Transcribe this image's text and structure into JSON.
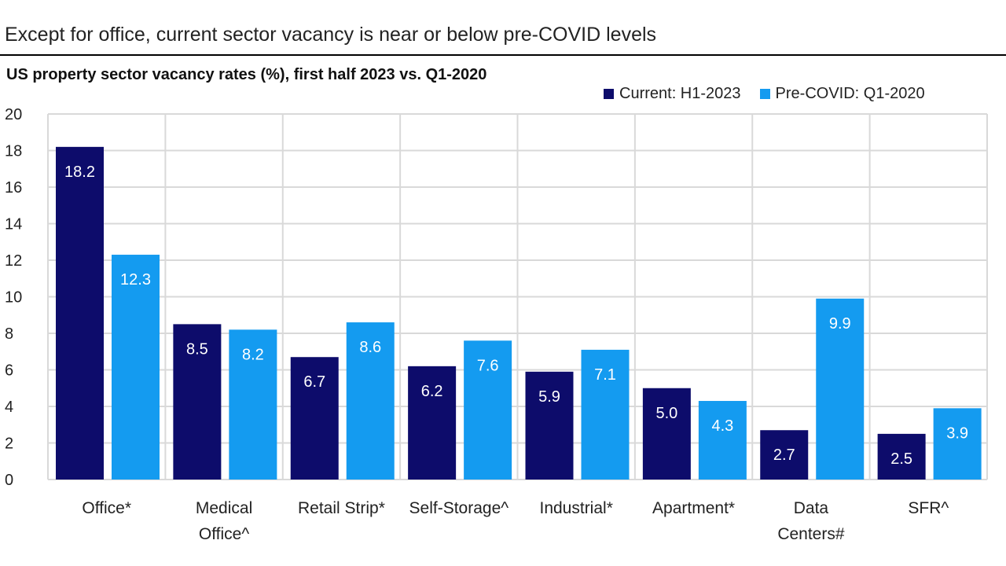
{
  "headline": "Except for office, current sector vacancy is near or below pre-COVID levels",
  "chart_data": {
    "type": "bar",
    "title": "US property sector vacancy rates (%), first half 2023 vs. Q1-2020",
    "categories": [
      [
        "Office*"
      ],
      [
        "Medical",
        "Office^"
      ],
      [
        "Retail Strip*"
      ],
      [
        "Self-Storage^"
      ],
      [
        "Industrial*"
      ],
      [
        "Apartment*"
      ],
      [
        "Data",
        "Centers#"
      ],
      [
        "SFR^"
      ]
    ],
    "series": [
      {
        "name": "Current: H1-2023",
        "color": "#0d0c6b",
        "values": [
          18.2,
          8.5,
          6.7,
          6.2,
          5.9,
          5.0,
          2.7,
          2.5
        ],
        "labels": [
          "18.2",
          "8.5",
          "6.7",
          "6.2",
          "5.9",
          "5.0",
          "2.7",
          "2.5"
        ]
      },
      {
        "name": "Pre-COVID: Q1-2020",
        "color": "#149bf0",
        "values": [
          12.3,
          8.2,
          8.6,
          7.6,
          7.1,
          4.3,
          9.9,
          3.9
        ],
        "labels": [
          "12.3",
          "8.2",
          "8.6",
          "7.6",
          "7.1",
          "4.3",
          "9.9",
          "3.9"
        ]
      }
    ],
    "ylim": [
      0,
      20
    ],
    "yticks": [
      "0",
      "2",
      "4",
      "6",
      "8",
      "10",
      "12",
      "14",
      "16",
      "18",
      "20"
    ],
    "xlabel": "",
    "ylabel": "",
    "grid": true,
    "legend_position": "top-right"
  }
}
